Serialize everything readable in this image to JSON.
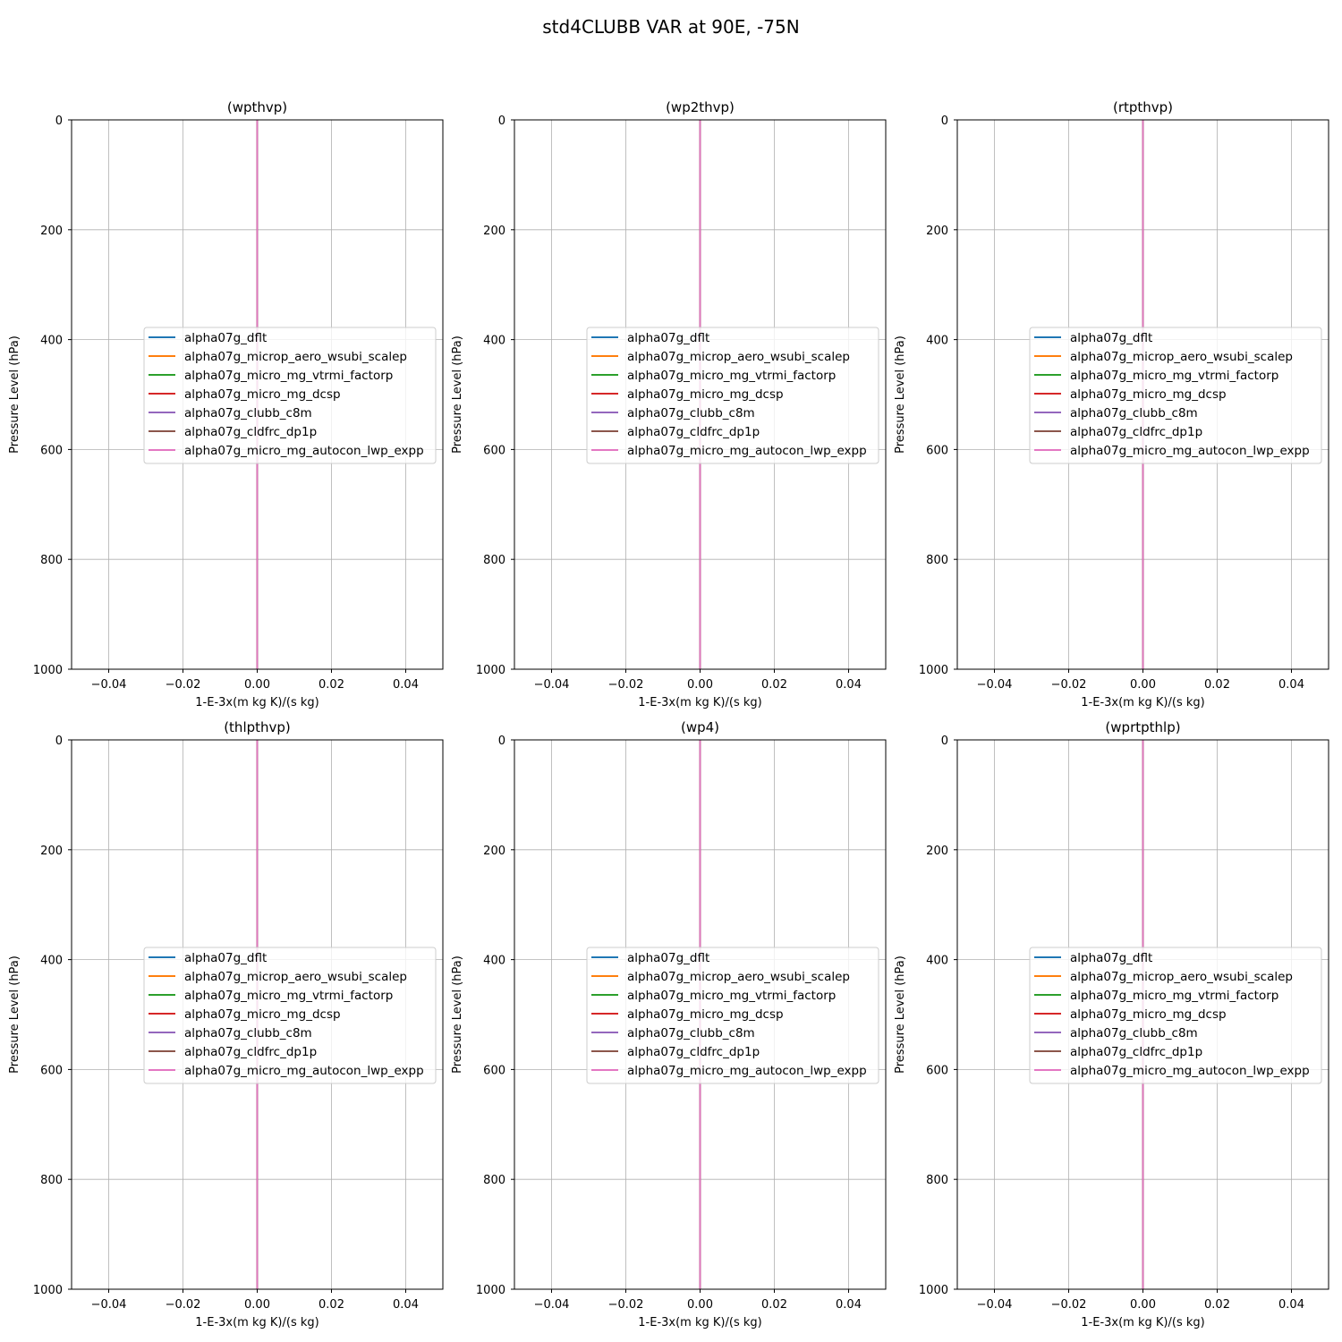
{
  "figure": {
    "suptitle": "std4CLUBB VAR at 90E, -75N"
  },
  "chart_data": [
    {
      "type": "line",
      "title": "(wpthvp)",
      "xlabel": "1-E-3x(m kg K)/(s kg)",
      "ylabel": "Pressure Level (hPa)",
      "xlim": [
        -0.05,
        0.05
      ],
      "ylim": [
        1000,
        0
      ],
      "y_inverted": true,
      "xticks": [
        -0.04,
        -0.02,
        0.0,
        0.02,
        0.04
      ],
      "xtick_labels": [
        "−0.04",
        "−0.02",
        "0.00",
        "0.02",
        "0.04"
      ],
      "yticks": [
        0,
        200,
        400,
        600,
        800,
        1000
      ],
      "ytick_labels": [
        "0",
        "200",
        "400",
        "600",
        "800",
        "1000"
      ],
      "grid": true,
      "legend_position": "center-right",
      "series": [
        {
          "name": "alpha07g_dflt",
          "color": "#1f77b4",
          "x": [
            0,
            0
          ],
          "y": [
            0,
            1000
          ]
        },
        {
          "name": "alpha07g_microp_aero_wsubi_scalep",
          "color": "#ff7f0e",
          "x": [
            0,
            0
          ],
          "y": [
            0,
            1000
          ]
        },
        {
          "name": "alpha07g_micro_mg_vtrmi_factorp",
          "color": "#2ca02c",
          "x": [
            0,
            0
          ],
          "y": [
            0,
            1000
          ]
        },
        {
          "name": "alpha07g_micro_mg_dcsp",
          "color": "#d62728",
          "x": [
            0,
            0
          ],
          "y": [
            0,
            1000
          ]
        },
        {
          "name": "alpha07g_clubb_c8m",
          "color": "#9467bd",
          "x": [
            0,
            0
          ],
          "y": [
            0,
            1000
          ]
        },
        {
          "name": "alpha07g_cldfrc_dp1p",
          "color": "#8c564b",
          "x": [
            0,
            0
          ],
          "y": [
            0,
            1000
          ]
        },
        {
          "name": "alpha07g_micro_mg_autocon_lwp_expp",
          "color": "#e377c2",
          "x": [
            0,
            0
          ],
          "y": [
            0,
            1000
          ]
        }
      ]
    },
    {
      "type": "line",
      "title": "(wp2thvp)",
      "xlabel": "1-E-3x(m kg K)/(s kg)",
      "ylabel": "Pressure Level (hPa)",
      "xlim": [
        -0.05,
        0.05
      ],
      "ylim": [
        1000,
        0
      ],
      "y_inverted": true,
      "xticks": [
        -0.04,
        -0.02,
        0.0,
        0.02,
        0.04
      ],
      "xtick_labels": [
        "−0.04",
        "−0.02",
        "0.00",
        "0.02",
        "0.04"
      ],
      "yticks": [
        0,
        200,
        400,
        600,
        800,
        1000
      ],
      "ytick_labels": [
        "0",
        "200",
        "400",
        "600",
        "800",
        "1000"
      ],
      "grid": true,
      "legend_position": "center-right",
      "series": [
        {
          "name": "alpha07g_dflt",
          "color": "#1f77b4",
          "x": [
            0,
            0
          ],
          "y": [
            0,
            1000
          ]
        },
        {
          "name": "alpha07g_microp_aero_wsubi_scalep",
          "color": "#ff7f0e",
          "x": [
            0,
            0
          ],
          "y": [
            0,
            1000
          ]
        },
        {
          "name": "alpha07g_micro_mg_vtrmi_factorp",
          "color": "#2ca02c",
          "x": [
            0,
            0
          ],
          "y": [
            0,
            1000
          ]
        },
        {
          "name": "alpha07g_micro_mg_dcsp",
          "color": "#d62728",
          "x": [
            0,
            0
          ],
          "y": [
            0,
            1000
          ]
        },
        {
          "name": "alpha07g_clubb_c8m",
          "color": "#9467bd",
          "x": [
            0,
            0
          ],
          "y": [
            0,
            1000
          ]
        },
        {
          "name": "alpha07g_cldfrc_dp1p",
          "color": "#8c564b",
          "x": [
            0,
            0
          ],
          "y": [
            0,
            1000
          ]
        },
        {
          "name": "alpha07g_micro_mg_autocon_lwp_expp",
          "color": "#e377c2",
          "x": [
            0,
            0
          ],
          "y": [
            0,
            1000
          ]
        }
      ]
    },
    {
      "type": "line",
      "title": "(rtpthvp)",
      "xlabel": "1-E-3x(m kg K)/(s kg)",
      "ylabel": "Pressure Level (hPa)",
      "xlim": [
        -0.05,
        0.05
      ],
      "ylim": [
        1000,
        0
      ],
      "y_inverted": true,
      "xticks": [
        -0.04,
        -0.02,
        0.0,
        0.02,
        0.04
      ],
      "xtick_labels": [
        "−0.04",
        "−0.02",
        "0.00",
        "0.02",
        "0.04"
      ],
      "yticks": [
        0,
        200,
        400,
        600,
        800,
        1000
      ],
      "ytick_labels": [
        "0",
        "200",
        "400",
        "600",
        "800",
        "1000"
      ],
      "grid": true,
      "legend_position": "center-right",
      "series": [
        {
          "name": "alpha07g_dflt",
          "color": "#1f77b4",
          "x": [
            0,
            0
          ],
          "y": [
            0,
            1000
          ]
        },
        {
          "name": "alpha07g_microp_aero_wsubi_scalep",
          "color": "#ff7f0e",
          "x": [
            0,
            0
          ],
          "y": [
            0,
            1000
          ]
        },
        {
          "name": "alpha07g_micro_mg_vtrmi_factorp",
          "color": "#2ca02c",
          "x": [
            0,
            0
          ],
          "y": [
            0,
            1000
          ]
        },
        {
          "name": "alpha07g_micro_mg_dcsp",
          "color": "#d62728",
          "x": [
            0,
            0
          ],
          "y": [
            0,
            1000
          ]
        },
        {
          "name": "alpha07g_clubb_c8m",
          "color": "#9467bd",
          "x": [
            0,
            0
          ],
          "y": [
            0,
            1000
          ]
        },
        {
          "name": "alpha07g_cldfrc_dp1p",
          "color": "#8c564b",
          "x": [
            0,
            0
          ],
          "y": [
            0,
            1000
          ]
        },
        {
          "name": "alpha07g_micro_mg_autocon_lwp_expp",
          "color": "#e377c2",
          "x": [
            0,
            0
          ],
          "y": [
            0,
            1000
          ]
        }
      ]
    },
    {
      "type": "line",
      "title": "(thlpthvp)",
      "xlabel": "1-E-3x(m kg K)/(s kg)",
      "ylabel": "Pressure Level (hPa)",
      "xlim": [
        -0.05,
        0.05
      ],
      "ylim": [
        1000,
        0
      ],
      "y_inverted": true,
      "xticks": [
        -0.04,
        -0.02,
        0.0,
        0.02,
        0.04
      ],
      "xtick_labels": [
        "−0.04",
        "−0.02",
        "0.00",
        "0.02",
        "0.04"
      ],
      "yticks": [
        0,
        200,
        400,
        600,
        800,
        1000
      ],
      "ytick_labels": [
        "0",
        "200",
        "400",
        "600",
        "800",
        "1000"
      ],
      "grid": true,
      "legend_position": "center-right",
      "series": [
        {
          "name": "alpha07g_dflt",
          "color": "#1f77b4",
          "x": [
            0,
            0
          ],
          "y": [
            0,
            1000
          ]
        },
        {
          "name": "alpha07g_microp_aero_wsubi_scalep",
          "color": "#ff7f0e",
          "x": [
            0,
            0
          ],
          "y": [
            0,
            1000
          ]
        },
        {
          "name": "alpha07g_micro_mg_vtrmi_factorp",
          "color": "#2ca02c",
          "x": [
            0,
            0
          ],
          "y": [
            0,
            1000
          ]
        },
        {
          "name": "alpha07g_micro_mg_dcsp",
          "color": "#d62728",
          "x": [
            0,
            0
          ],
          "y": [
            0,
            1000
          ]
        },
        {
          "name": "alpha07g_clubb_c8m",
          "color": "#9467bd",
          "x": [
            0,
            0
          ],
          "y": [
            0,
            1000
          ]
        },
        {
          "name": "alpha07g_cldfrc_dp1p",
          "color": "#8c564b",
          "x": [
            0,
            0
          ],
          "y": [
            0,
            1000
          ]
        },
        {
          "name": "alpha07g_micro_mg_autocon_lwp_expp",
          "color": "#e377c2",
          "x": [
            0,
            0
          ],
          "y": [
            0,
            1000
          ]
        }
      ]
    },
    {
      "type": "line",
      "title": "(wp4)",
      "xlabel": "1-E-3x(m kg K)/(s kg)",
      "ylabel": "Pressure Level (hPa)",
      "xlim": [
        -0.05,
        0.05
      ],
      "ylim": [
        1000,
        0
      ],
      "y_inverted": true,
      "xticks": [
        -0.04,
        -0.02,
        0.0,
        0.02,
        0.04
      ],
      "xtick_labels": [
        "−0.04",
        "−0.02",
        "0.00",
        "0.02",
        "0.04"
      ],
      "yticks": [
        0,
        200,
        400,
        600,
        800,
        1000
      ],
      "ytick_labels": [
        "0",
        "200",
        "400",
        "600",
        "800",
        "1000"
      ],
      "grid": true,
      "legend_position": "center-right",
      "series": [
        {
          "name": "alpha07g_dflt",
          "color": "#1f77b4",
          "x": [
            0,
            0
          ],
          "y": [
            0,
            1000
          ]
        },
        {
          "name": "alpha07g_microp_aero_wsubi_scalep",
          "color": "#ff7f0e",
          "x": [
            0,
            0
          ],
          "y": [
            0,
            1000
          ]
        },
        {
          "name": "alpha07g_micro_mg_vtrmi_factorp",
          "color": "#2ca02c",
          "x": [
            0,
            0
          ],
          "y": [
            0,
            1000
          ]
        },
        {
          "name": "alpha07g_micro_mg_dcsp",
          "color": "#d62728",
          "x": [
            0,
            0
          ],
          "y": [
            0,
            1000
          ]
        },
        {
          "name": "alpha07g_clubb_c8m",
          "color": "#9467bd",
          "x": [
            0,
            0
          ],
          "y": [
            0,
            1000
          ]
        },
        {
          "name": "alpha07g_cldfrc_dp1p",
          "color": "#8c564b",
          "x": [
            0,
            0
          ],
          "y": [
            0,
            1000
          ]
        },
        {
          "name": "alpha07g_micro_mg_autocon_lwp_expp",
          "color": "#e377c2",
          "x": [
            0,
            0
          ],
          "y": [
            0,
            1000
          ]
        }
      ]
    },
    {
      "type": "line",
      "title": "(wprtpthlp)",
      "xlabel": "1-E-3x(m kg K)/(s kg)",
      "ylabel": "Pressure Level (hPa)",
      "xlim": [
        -0.05,
        0.05
      ],
      "ylim": [
        1000,
        0
      ],
      "y_inverted": true,
      "xticks": [
        -0.04,
        -0.02,
        0.0,
        0.02,
        0.04
      ],
      "xtick_labels": [
        "−0.04",
        "−0.02",
        "0.00",
        "0.02",
        "0.04"
      ],
      "yticks": [
        0,
        200,
        400,
        600,
        800,
        1000
      ],
      "ytick_labels": [
        "0",
        "200",
        "400",
        "600",
        "800",
        "1000"
      ],
      "grid": true,
      "legend_position": "center-right",
      "series": [
        {
          "name": "alpha07g_dflt",
          "color": "#1f77b4",
          "x": [
            0,
            0
          ],
          "y": [
            0,
            1000
          ]
        },
        {
          "name": "alpha07g_microp_aero_wsubi_scalep",
          "color": "#ff7f0e",
          "x": [
            0,
            0
          ],
          "y": [
            0,
            1000
          ]
        },
        {
          "name": "alpha07g_micro_mg_vtrmi_factorp",
          "color": "#2ca02c",
          "x": [
            0,
            0
          ],
          "y": [
            0,
            1000
          ]
        },
        {
          "name": "alpha07g_micro_mg_dcsp",
          "color": "#d62728",
          "x": [
            0,
            0
          ],
          "y": [
            0,
            1000
          ]
        },
        {
          "name": "alpha07g_clubb_c8m",
          "color": "#9467bd",
          "x": [
            0,
            0
          ],
          "y": [
            0,
            1000
          ]
        },
        {
          "name": "alpha07g_cldfrc_dp1p",
          "color": "#8c564b",
          "x": [
            0,
            0
          ],
          "y": [
            0,
            1000
          ]
        },
        {
          "name": "alpha07g_micro_mg_autocon_lwp_expp",
          "color": "#e377c2",
          "x": [
            0,
            0
          ],
          "y": [
            0,
            1000
          ]
        }
      ]
    }
  ]
}
